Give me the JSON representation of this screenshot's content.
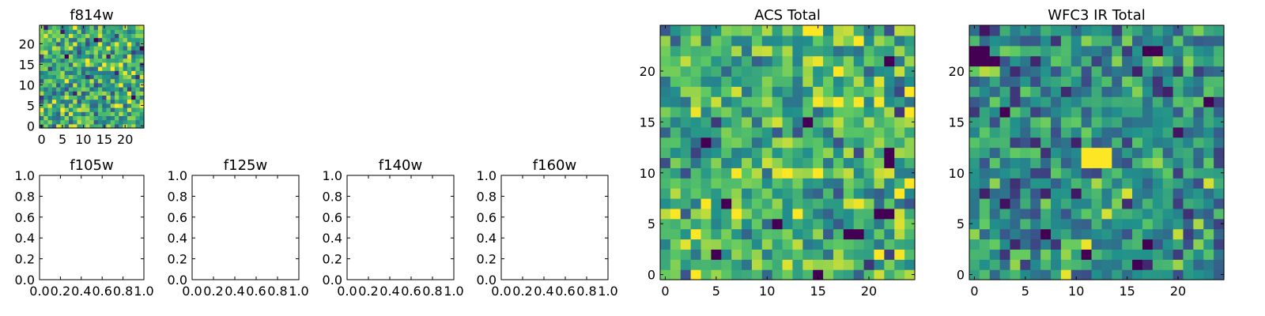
{
  "colormap": [
    "#440154",
    "#3b528b",
    "#21918c",
    "#5ec962",
    "#fde725"
  ],
  "chart_data": [
    {
      "type": "heatmap",
      "title": "f814w",
      "grid_size": 25,
      "xlim": [
        -0.5,
        24.5
      ],
      "ylim": [
        -0.5,
        24.5
      ],
      "xticks": [
        0,
        5,
        10,
        15,
        20
      ],
      "yticks": [
        0,
        5,
        10,
        15,
        20
      ],
      "value_range": [
        0,
        1
      ],
      "noise_seed": 814,
      "noise_mean": 0.62,
      "noise_spread": 0.3,
      "hot_pixels": [
        [
          24,
          19
        ],
        [
          22,
          7
        ],
        [
          13,
          21
        ],
        [
          6,
          17
        ]
      ]
    },
    {
      "type": "heatmap",
      "title": "f105w",
      "empty": true,
      "xlim": [
        0,
        1
      ],
      "ylim": [
        0,
        1
      ],
      "xticks": [
        "0.0",
        "0.2",
        "0.4",
        "0.6",
        "0.8",
        "1.0"
      ],
      "yticks": [
        "0.0",
        "0.2",
        "0.4",
        "0.6",
        "0.8",
        "1.0"
      ]
    },
    {
      "type": "heatmap",
      "title": "f125w",
      "empty": true,
      "xlim": [
        0,
        1
      ],
      "ylim": [
        0,
        1
      ],
      "xticks": [
        "0.0",
        "0.2",
        "0.4",
        "0.6",
        "0.8",
        "1.0"
      ],
      "yticks": [
        "0.0",
        "0.2",
        "0.4",
        "0.6",
        "0.8",
        "1.0"
      ]
    },
    {
      "type": "heatmap",
      "title": "f140w",
      "empty": true,
      "xlim": [
        0,
        1
      ],
      "ylim": [
        0,
        1
      ],
      "xticks": [
        "0.0",
        "0.2",
        "0.4",
        "0.6",
        "0.8",
        "1.0"
      ],
      "yticks": [
        "0.0",
        "0.2",
        "0.4",
        "0.6",
        "0.8",
        "1.0"
      ]
    },
    {
      "type": "heatmap",
      "title": "f160w",
      "empty": true,
      "xlim": [
        0,
        1
      ],
      "ylim": [
        0,
        1
      ],
      "xticks": [
        "0.0",
        "0.2",
        "0.4",
        "0.6",
        "0.8",
        "1.0"
      ],
      "yticks": [
        "0.0",
        "0.2",
        "0.4",
        "0.6",
        "0.8",
        "1.0"
      ]
    },
    {
      "type": "heatmap",
      "title": "ACS Total",
      "grid_size": 25,
      "xlim": [
        -0.5,
        24.5
      ],
      "ylim": [
        -0.5,
        24.5
      ],
      "xticks": [
        0,
        5,
        10,
        15,
        20
      ],
      "yticks": [
        0,
        5,
        10,
        15,
        20
      ],
      "value_range": [
        0,
        1
      ],
      "noise_seed": 7,
      "noise_mean": 0.66,
      "noise_spread": 0.28,
      "hot_pixels": [
        [
          22,
          21
        ],
        [
          22,
          12
        ],
        [
          22,
          11
        ],
        [
          21,
          6
        ],
        [
          22,
          6
        ],
        [
          18,
          4
        ],
        [
          19,
          4
        ],
        [
          11,
          5
        ],
        [
          6,
          7
        ],
        [
          4,
          13
        ],
        [
          14,
          15
        ],
        [
          5,
          2
        ],
        [
          15,
          0
        ]
      ]
    },
    {
      "type": "heatmap",
      "title": "WFC3 IR Total",
      "grid_size": 25,
      "xlim": [
        -0.5,
        24.5
      ],
      "ylim": [
        -0.5,
        24.5
      ],
      "xticks": [
        0,
        5,
        10,
        15,
        20
      ],
      "yticks": [
        0,
        5,
        10,
        15,
        20
      ],
      "value_range": [
        0,
        1
      ],
      "noise_seed": 3,
      "noise_mean": 0.5,
      "noise_spread": 0.26,
      "hot_pixels": [
        [
          0,
          22
        ],
        [
          1,
          22
        ],
        [
          0,
          21
        ],
        [
          1,
          21
        ],
        [
          2,
          21
        ],
        [
          17,
          22
        ],
        [
          18,
          22
        ],
        [
          3,
          16
        ],
        [
          23,
          17
        ],
        [
          7,
          4
        ],
        [
          11,
          2
        ],
        [
          16,
          1
        ],
        [
          17,
          3
        ]
      ]
    }
  ]
}
